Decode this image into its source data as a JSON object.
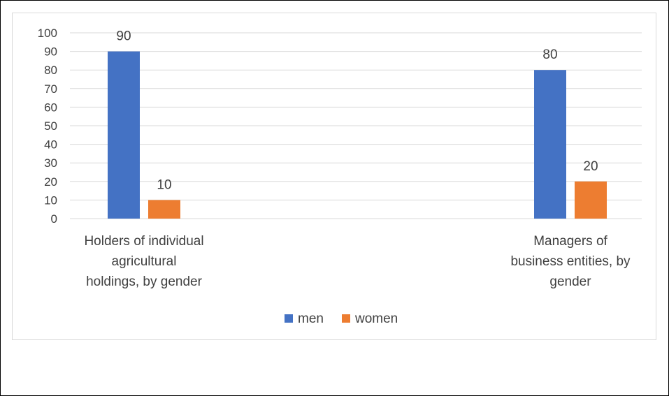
{
  "chart_data": {
    "type": "bar",
    "title": "",
    "xlabel": "",
    "ylabel": "",
    "ylim": [
      0,
      100
    ],
    "ytick_step": 10,
    "yticks": [
      "0",
      "10",
      "20",
      "30",
      "40",
      "50",
      "60",
      "70",
      "80",
      "90",
      "100"
    ],
    "grid": true,
    "legend_position": "bottom",
    "categories": [
      [
        "Holders of individual",
        "agricultural",
        "holdings, by gender"
      ],
      [
        "Managers of",
        "business entities, by",
        "gender"
      ]
    ],
    "series": [
      {
        "name": "men",
        "color": "#4472C4",
        "values": [
          90,
          80
        ],
        "labels": [
          "90",
          "80"
        ]
      },
      {
        "name": "women",
        "color": "#ED7D31",
        "values": [
          10,
          20
        ],
        "labels": [
          "10",
          "20"
        ]
      }
    ]
  }
}
